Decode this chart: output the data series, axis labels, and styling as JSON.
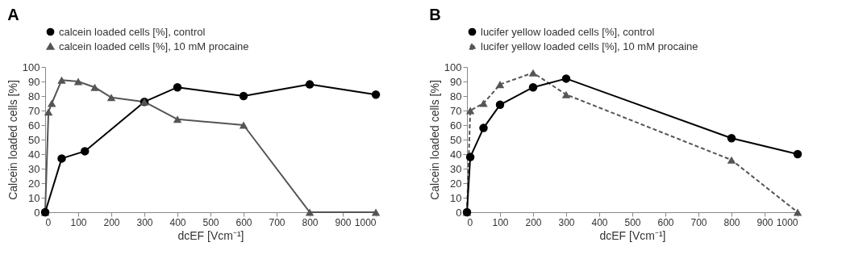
{
  "chart_data": [
    {
      "type": "line",
      "title": "A",
      "xlabel": "dcEF [Vcm⁻¹]",
      "ylabel": "Calcein loaded cells [%]",
      "xlim": [
        0,
        1000
      ],
      "xticks": [
        0,
        100,
        200,
        300,
        400,
        500,
        600,
        700,
        800,
        900,
        1000
      ],
      "ylim": [
        0,
        100
      ],
      "yticks": [
        0,
        10,
        20,
        30,
        40,
        50,
        60,
        70,
        80,
        90,
        100
      ],
      "grid": false,
      "legend": "top left",
      "series": [
        {
          "name": "calcein loaded cells [%], control",
          "color": "#000000",
          "marker": "circle",
          "line_style": "solid",
          "x": [
            0,
            50,
            120,
            300,
            400,
            600,
            800,
            1000
          ],
          "values": [
            0,
            37,
            42,
            76,
            86,
            80,
            88,
            81
          ]
        },
        {
          "name": "calcein loaded cells [%], 10 mM procaine",
          "color": "#555555",
          "marker": "triangle",
          "line_style": "solid",
          "x": [
            0,
            10,
            20,
            50,
            100,
            150,
            200,
            300,
            400,
            600,
            800,
            1000
          ],
          "values": [
            0,
            69,
            75,
            91,
            90,
            86,
            79,
            76,
            64,
            60,
            0,
            0
          ]
        }
      ]
    },
    {
      "type": "line",
      "title": "B",
      "xlabel": "dcEF [Vcm⁻¹]",
      "ylabel": "Calcein loaded cells [%]",
      "xlim": [
        0,
        1000
      ],
      "xticks": [
        0,
        100,
        200,
        300,
        400,
        500,
        600,
        700,
        800,
        900,
        1000
      ],
      "ylim": [
        0,
        100
      ],
      "yticks": [
        0,
        10,
        20,
        30,
        40,
        50,
        60,
        70,
        80,
        90,
        100
      ],
      "grid": false,
      "legend": "top left",
      "series": [
        {
          "name": "lucifer yellow loaded cells [%], control",
          "color": "#000000",
          "marker": "circle",
          "line_style": "solid",
          "x": [
            0,
            10,
            50,
            100,
            200,
            300,
            800,
            1000
          ],
          "values": [
            0,
            38,
            58,
            74,
            86,
            92,
            51,
            40
          ]
        },
        {
          "name": "lucifer yellow loaded cells [%], 10 mM procaine",
          "color": "#555555",
          "marker": "triangle",
          "line_style": "dashed",
          "x": [
            0,
            10,
            50,
            100,
            200,
            300,
            800,
            1000
          ],
          "values": [
            0,
            70,
            75,
            88,
            96,
            81,
            36,
            0
          ]
        }
      ]
    }
  ]
}
